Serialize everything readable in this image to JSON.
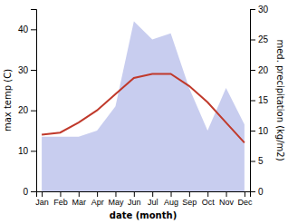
{
  "chart_data": {
    "type": "line",
    "categories": [
      "Jan",
      "Feb",
      "Mar",
      "Apr",
      "May",
      "Jun",
      "Jul",
      "Aug",
      "Sep",
      "Oct",
      "Nov",
      "Dec"
    ],
    "series": [
      {
        "type": "area",
        "axis": "y2",
        "color": "#b0b8e8",
        "values": [
          9,
          9,
          9,
          10,
          14,
          28,
          25,
          26,
          17,
          10,
          17,
          11
        ]
      },
      {
        "type": "line",
        "color": "#c0392b",
        "values": [
          14,
          14.5,
          17,
          20,
          24,
          28,
          29,
          29,
          26,
          22,
          17,
          12
        ]
      }
    ],
    "xlabel": "date (month)",
    "ylabel": "max temp (C)",
    "y2label": "med. precipitation (kg/m2)",
    "ylim": [
      0,
      45
    ],
    "yticks": [
      0,
      10,
      20,
      30,
      40
    ],
    "y2lim": [
      0,
      30
    ],
    "y2ticks": [
      0,
      5,
      10,
      15,
      20,
      25,
      30
    ],
    "grid": false
  }
}
